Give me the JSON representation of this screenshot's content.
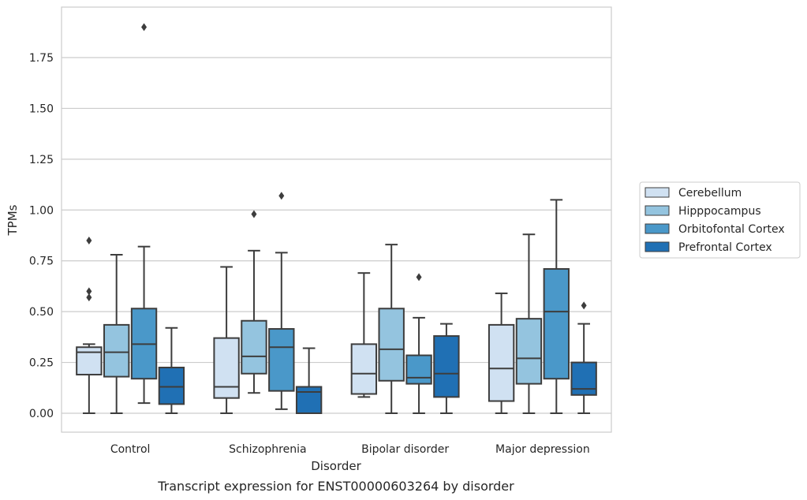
{
  "chart_data": {
    "type": "box",
    "title": "",
    "caption": "Transcript expression for ENST00000603264 by disorder",
    "xlabel": "Disorder",
    "ylabel": "TPMs",
    "ylim": [
      -0.09,
      1.99
    ],
    "yticks": [
      0.0,
      0.25,
      0.5,
      0.75,
      1.0,
      1.25,
      1.5,
      1.75
    ],
    "ytick_labels": [
      "0.00",
      "0.25",
      "0.50",
      "0.75",
      "1.00",
      "1.25",
      "1.50",
      "1.75"
    ],
    "grid": true,
    "legend_position": "right",
    "categories": [
      "Control",
      "Schizophrenia",
      "Bipolar disorder",
      "Major depression"
    ],
    "series": [
      {
        "name": "Cerebellum",
        "color": "#d0e1f2",
        "boxes": [
          {
            "min": 0.0,
            "q1": 0.19,
            "median": 0.3,
            "q3": 0.325,
            "max": 0.34,
            "outliers": [
              0.85,
              0.6,
              0.57
            ]
          },
          {
            "min": 0.0,
            "q1": 0.075,
            "median": 0.13,
            "q3": 0.37,
            "max": 0.72,
            "outliers": []
          },
          {
            "min": 0.08,
            "q1": 0.095,
            "median": 0.195,
            "q3": 0.34,
            "max": 0.69,
            "outliers": []
          },
          {
            "min": 0.0,
            "q1": 0.06,
            "median": 0.22,
            "q3": 0.435,
            "max": 0.59,
            "outliers": []
          }
        ]
      },
      {
        "name": "Hipppocampus",
        "color": "#94c4df",
        "boxes": [
          {
            "min": 0.0,
            "q1": 0.18,
            "median": 0.3,
            "q3": 0.435,
            "max": 0.78,
            "outliers": []
          },
          {
            "min": 0.1,
            "q1": 0.195,
            "median": 0.28,
            "q3": 0.455,
            "max": 0.8,
            "outliers": [
              0.98
            ]
          },
          {
            "min": 0.0,
            "q1": 0.16,
            "median": 0.315,
            "q3": 0.515,
            "max": 0.83,
            "outliers": []
          },
          {
            "min": 0.0,
            "q1": 0.145,
            "median": 0.27,
            "q3": 0.465,
            "max": 0.88,
            "outliers": []
          }
        ]
      },
      {
        "name": "Orbitofontal Cortex",
        "color": "#4a98c9",
        "boxes": [
          {
            "min": 0.05,
            "q1": 0.17,
            "median": 0.34,
            "q3": 0.515,
            "max": 0.82,
            "outliers": [
              1.9
            ]
          },
          {
            "min": 0.02,
            "q1": 0.11,
            "median": 0.325,
            "q3": 0.415,
            "max": 0.79,
            "outliers": [
              1.07
            ]
          },
          {
            "min": 0.0,
            "q1": 0.145,
            "median": 0.175,
            "q3": 0.285,
            "max": 0.47,
            "outliers": [
              0.67
            ]
          },
          {
            "min": 0.0,
            "q1": 0.17,
            "median": 0.5,
            "q3": 0.71,
            "max": 1.05,
            "outliers": []
          }
        ]
      },
      {
        "name": "Prefrontal Cortex",
        "color": "#2070b4",
        "boxes": [
          {
            "min": 0.0,
            "q1": 0.045,
            "median": 0.13,
            "q3": 0.225,
            "max": 0.42,
            "outliers": []
          },
          {
            "min": 0.0,
            "q1": 0.0,
            "median": 0.105,
            "q3": 0.13,
            "max": 0.32,
            "outliers": []
          },
          {
            "min": 0.0,
            "q1": 0.08,
            "median": 0.195,
            "q3": 0.38,
            "max": 0.44,
            "outliers": []
          },
          {
            "min": 0.0,
            "q1": 0.09,
            "median": 0.12,
            "q3": 0.25,
            "max": 0.44,
            "outliers": [
              0.53
            ]
          }
        ]
      }
    ]
  }
}
